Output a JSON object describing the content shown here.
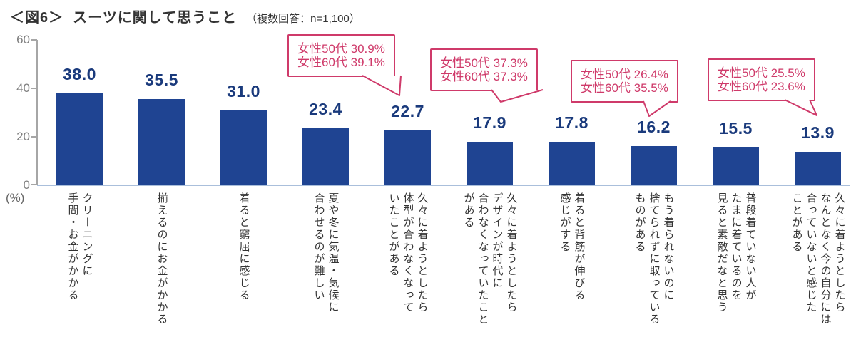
{
  "title": {
    "prefix": "＜図6＞",
    "main": "スーツに関して思うこと",
    "note": "（複数回答：n=1,100）"
  },
  "y_axis": {
    "ticks": [
      "60",
      "40",
      "20",
      "0"
    ],
    "unit": "(%)"
  },
  "bars": [
    {
      "value": 38.0,
      "value_label": "38.0",
      "label": "クリーニングに\n手間・お金がかかる"
    },
    {
      "value": 35.5,
      "value_label": "35.5",
      "label": "揃えるのにお金がかかる"
    },
    {
      "value": 31.0,
      "value_label": "31.0",
      "label": "着ると窮屈に感じる"
    },
    {
      "value": 23.4,
      "value_label": "23.4",
      "label": "夏や冬に気温・気候に\n合わせるのが難しい"
    },
    {
      "value": 22.7,
      "value_label": "22.7",
      "label": "久々に着ようとしたら\n体型が合わなくなって\nいたことがある"
    },
    {
      "value": 17.9,
      "value_label": "17.9",
      "label": "久々に着ようとしたら\nデザインが時代に\n合わなくなっていたこと\nがある"
    },
    {
      "value": 17.8,
      "value_label": "17.8",
      "label": "着ると背筋が伸びる\n感じがする"
    },
    {
      "value": 16.2,
      "value_label": "16.2",
      "label": "もう着られないのに\n捨てられずに取っている\nものがある"
    },
    {
      "value": 15.5,
      "value_label": "15.5",
      "label": "普段着ていない人が\nたまに着ているのを\n見ると素敵だなと思う"
    },
    {
      "value": 13.9,
      "value_label": "13.9",
      "label": "久々に着ようとしたら\nなんとなく今の自分には\n合っていないと感じた\nことがある"
    }
  ],
  "callouts": [
    {
      "line1": "女性50代 30.9%",
      "line2": "女性60代 39.1%"
    },
    {
      "line1": "女性50代 37.3%",
      "line2": "女性60代 37.3%"
    },
    {
      "line1": "女性50代 26.4%",
      "line2": "女性60代 35.5%"
    },
    {
      "line1": "女性50代 25.5%",
      "line2": "女性60代 23.6%"
    }
  ],
  "colors": {
    "bar": "#1f4492",
    "value_label": "#1a3a7c",
    "callout": "#cf3a6a",
    "axis": "#a6a6a6",
    "text": "#333333"
  },
  "chart_data": {
    "type": "bar",
    "title": "＜図6＞ スーツに関して思うこと（複数回答：n=1,100）",
    "xlabel": "",
    "ylabel": "(%)",
    "ylim": [
      0,
      60
    ],
    "yticks": [
      0,
      20,
      40,
      60
    ],
    "grid": false,
    "categories": [
      "クリーニングに手間・お金がかかる",
      "揃えるのにお金がかかる",
      "着ると窮屈に感じる",
      "夏や冬に気温・気候に合わせるのが難しい",
      "久々に着ようとしたら体型が合わなくなっていたことがある",
      "久々に着ようとしたらデザインが時代に合わなくなっていたことがある",
      "着ると背筋が伸びる感じがする",
      "もう着られないのに捨てられずに取っているものがある",
      "普段着ていない人がたまに着ているのを見ると素敵だなと思う",
      "久々に着ようとしたらなんとなく今の自分には合っていないと感じたことがある"
    ],
    "values": [
      38.0,
      35.5,
      31.0,
      23.4,
      22.7,
      17.9,
      17.8,
      16.2,
      15.5,
      13.9
    ],
    "annotations": [
      {
        "target_category_index": 4,
        "lines": [
          "女性50代 30.9%",
          "女性60代 39.1%"
        ]
      },
      {
        "target_category_index": 5,
        "lines": [
          "女性50代 37.3%",
          "女性60代 37.3%"
        ]
      },
      {
        "target_category_index": 7,
        "lines": [
          "女性50代 26.4%",
          "女性60代 35.5%"
        ]
      },
      {
        "target_category_index": 9,
        "lines": [
          "女性50代 25.5%",
          "女性60代 23.6%"
        ]
      }
    ],
    "bar_color": "#1f4492",
    "legend": null
  }
}
